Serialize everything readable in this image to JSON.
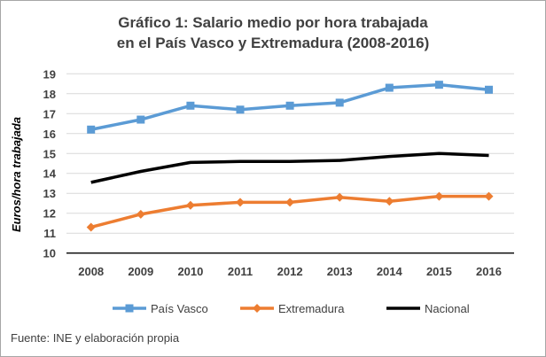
{
  "chart_data": {
    "type": "line",
    "title_lines": [
      "Gráfico 1: Salario medio por hora trabajada",
      "en el País Vasco y Extremadura (2008-2016)"
    ],
    "xlabel": "",
    "ylabel": "Euros/hora trabajada",
    "categories": [
      "2008",
      "2009",
      "2010",
      "2011",
      "2012",
      "2013",
      "2014",
      "2015",
      "2016"
    ],
    "ylim": [
      10,
      19
    ],
    "yticks": [
      10,
      11,
      12,
      13,
      14,
      15,
      16,
      17,
      18,
      19
    ],
    "grid": true,
    "legend_position": "bottom",
    "series": [
      {
        "name": "País Vasco",
        "color": "#5b9bd5",
        "marker": "square",
        "values": [
          16.2,
          16.7,
          17.4,
          17.2,
          17.4,
          17.55,
          18.3,
          18.45,
          18.2
        ]
      },
      {
        "name": "Extremadura",
        "color": "#ed7d31",
        "marker": "diamond",
        "values": [
          11.3,
          11.95,
          12.4,
          12.55,
          12.55,
          12.8,
          12.6,
          12.85,
          12.85
        ]
      },
      {
        "name": "Nacional",
        "color": "#000000",
        "marker": "none",
        "values": [
          13.55,
          14.1,
          14.55,
          14.6,
          14.6,
          14.65,
          14.85,
          15.0,
          14.9
        ]
      }
    ]
  },
  "source": "Fuente: INE y elaboración propia"
}
